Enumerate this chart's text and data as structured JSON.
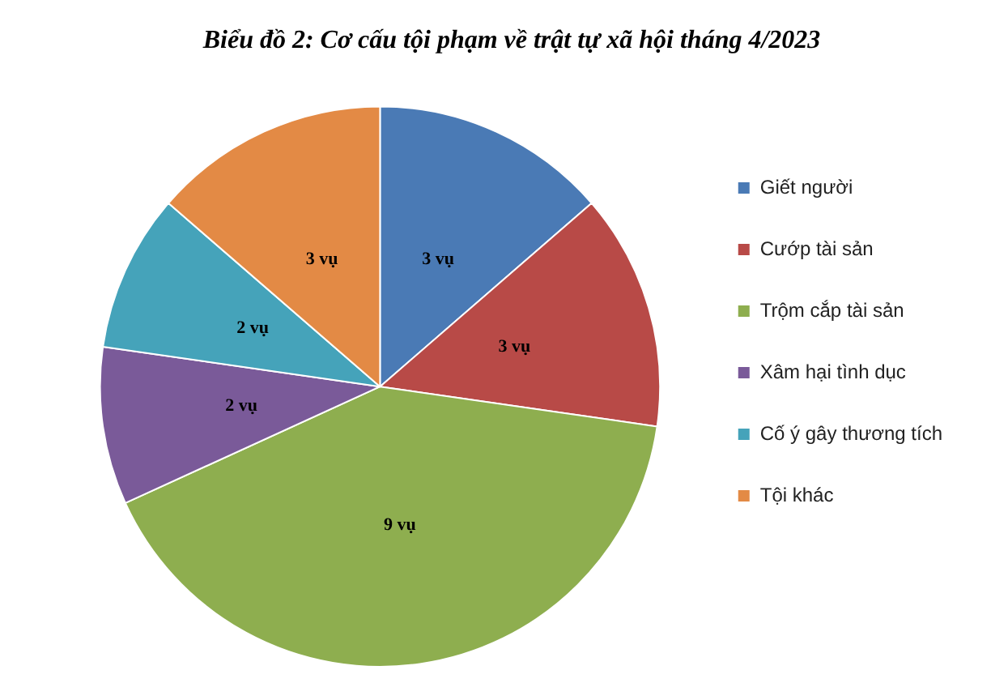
{
  "chart_data": {
    "type": "pie",
    "title": "Biểu đồ 2: Cơ cấu tội phạm về trật tự xã hội tháng 4/2023",
    "categories": [
      "Giết người",
      "Cướp tài sản",
      "Trộm cắp tài sản",
      "Xâm hại tình dục",
      "Cố ý gây thương tích",
      "Tội khác"
    ],
    "values": [
      3,
      3,
      9,
      2,
      2,
      3
    ],
    "colors": [
      "#4a7ab5",
      "#b84a47",
      "#8eae4f",
      "#7a5a99",
      "#45a3ba",
      "#e38a45"
    ],
    "value_labels": [
      "3 vụ",
      "3 vụ",
      "9 vụ",
      "2 vụ",
      "2 vụ",
      "3 vụ"
    ],
    "legend": "right"
  }
}
